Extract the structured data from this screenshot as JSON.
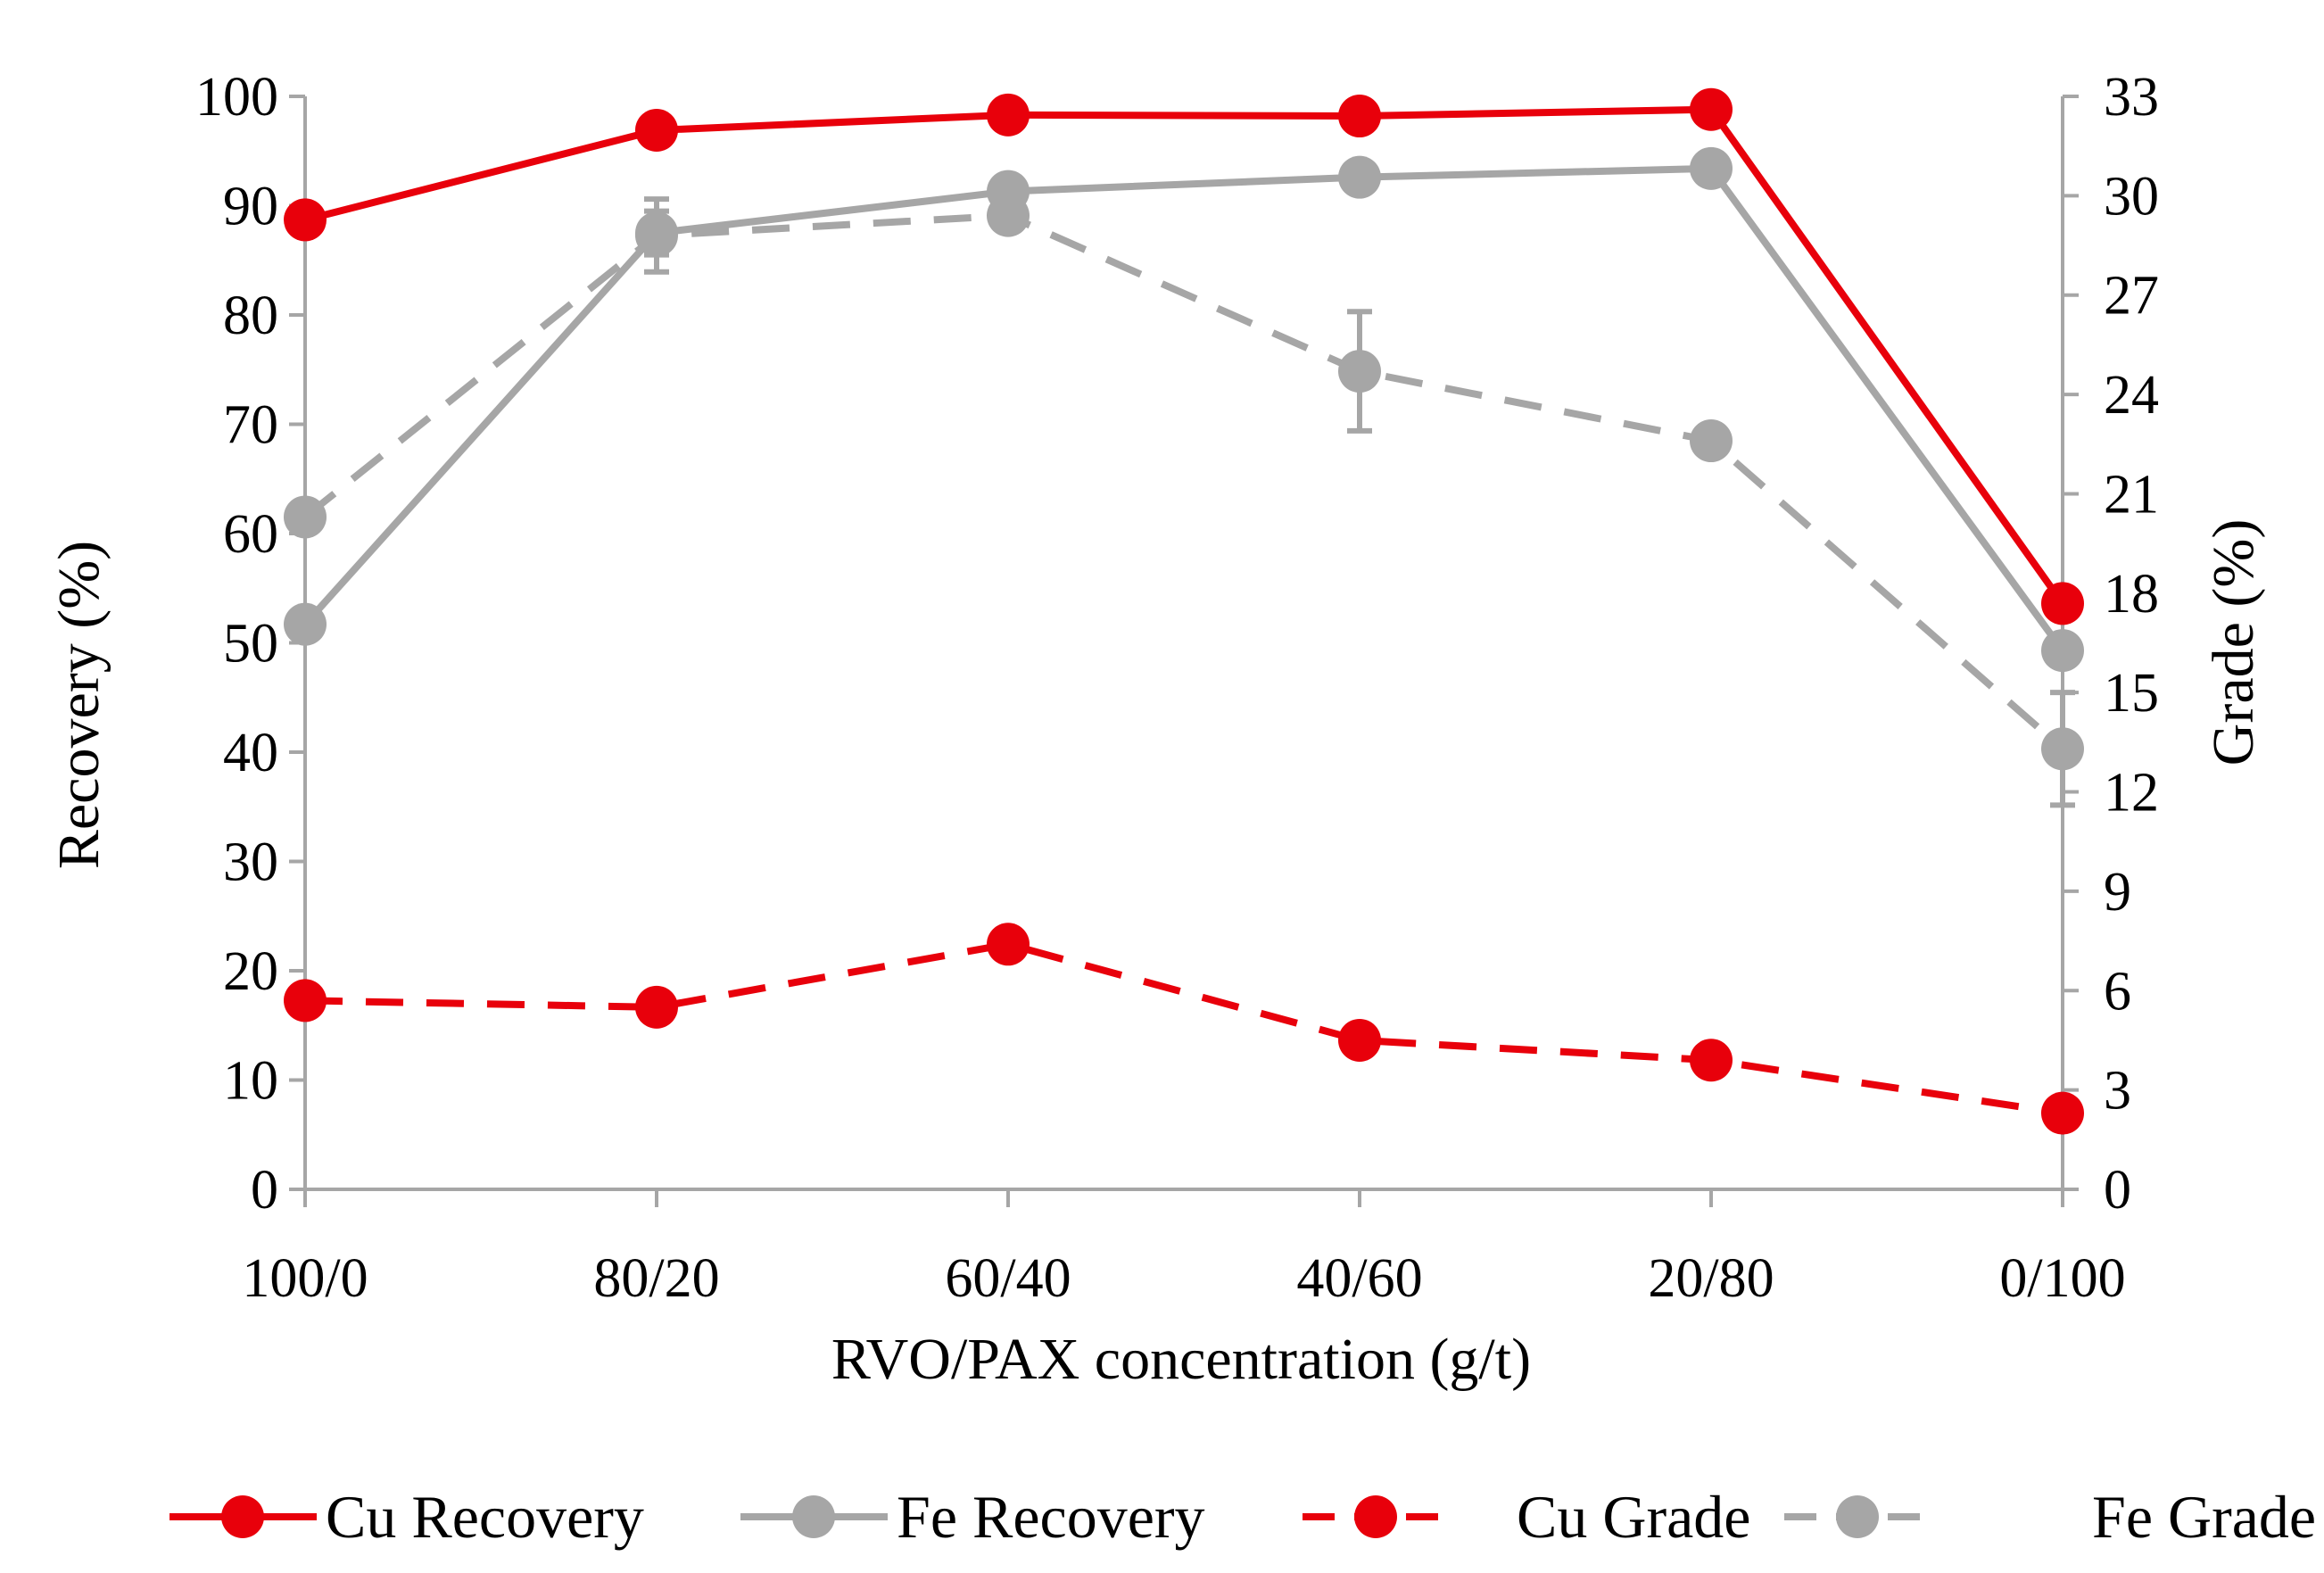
{
  "chart_data": {
    "type": "line",
    "categories": [
      "100/0",
      "80/20",
      "60/40",
      "40/60",
      "20/80",
      "0/100"
    ],
    "xlabel": "RVO/PAX concentration (g/t)",
    "ylabel": "Recovery (%)",
    "y2label": "Grade (%)",
    "ylim": [
      0,
      100
    ],
    "y2lim": [
      0,
      33
    ],
    "yticks": [
      "0",
      "10",
      "20",
      "30",
      "40",
      "50",
      "60",
      "70",
      "80",
      "90",
      "100"
    ],
    "y2ticks": [
      "0",
      "3",
      "6",
      "9",
      "12",
      "15",
      "18",
      "21",
      "24",
      "27",
      "30",
      "33"
    ],
    "legend_position": "bottom",
    "series": [
      {
        "name": "Cu Recovery",
        "axis": "left",
        "style": "solid",
        "color": "#e8000b",
        "values": [
          88.7,
          96.9,
          98.3,
          98.2,
          98.8,
          53.6
        ]
      },
      {
        "name": "Fe Recovery",
        "axis": "left",
        "style": "solid",
        "color": "#a6a6a6",
        "values": [
          51.7,
          87.5,
          91.3,
          92.6,
          93.4,
          49.3
        ],
        "errors": [
          0,
          2.0,
          0,
          0,
          0,
          0
        ]
      },
      {
        "name": "Cu Grade",
        "axis": "right",
        "style": "dashed",
        "color": "#e8000b",
        "values": [
          5.7,
          5.5,
          7.4,
          4.5,
          3.9,
          2.3
        ]
      },
      {
        "name": "Fe Grade",
        "axis": "right",
        "style": "dashed",
        "color": "#a6a6a6",
        "values": [
          20.3,
          28.8,
          29.4,
          24.7,
          22.6,
          13.3
        ],
        "errors": [
          0,
          1.1,
          0,
          1.8,
          0.4,
          1.7
        ]
      }
    ]
  }
}
